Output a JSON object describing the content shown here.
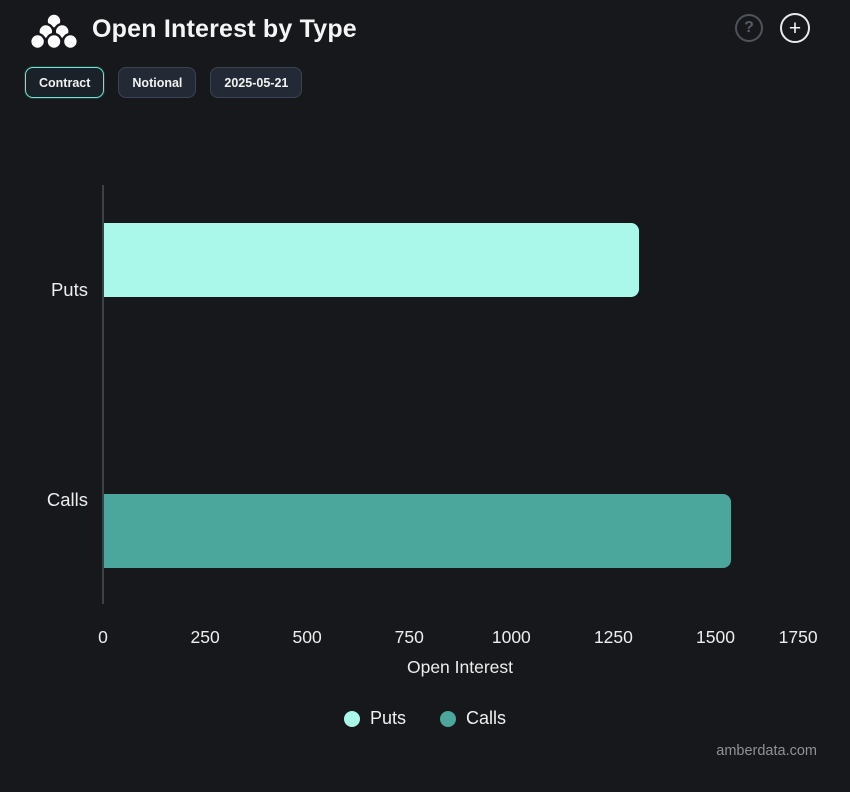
{
  "header": {
    "title": "Open Interest by Type",
    "icons": {
      "help": "?",
      "add": "+"
    }
  },
  "toolbar": {
    "buttons": [
      {
        "label": "Contract",
        "active": true
      },
      {
        "label": "Notional",
        "active": false
      },
      {
        "label": "2025-05-21",
        "active": false
      }
    ]
  },
  "chart_data": {
    "type": "bar",
    "orientation": "horizontal",
    "title": "Open Interest by Type",
    "categories": [
      "Puts",
      "Calls"
    ],
    "values": [
      1310,
      1535
    ],
    "colors": [
      "#a9f8e9",
      "#4ba79c"
    ],
    "xlabel": "Open Interest",
    "ylabel": "",
    "xticks": [
      0,
      250,
      500,
      750,
      1000,
      1250,
      1500,
      1750
    ],
    "xlim": [
      0,
      1750
    ],
    "grid": false,
    "legend_position": "bottom-center",
    "legend": [
      {
        "label": "Puts",
        "color": "#a9f8e9"
      },
      {
        "label": "Calls",
        "color": "#4ba79c"
      }
    ]
  },
  "footer": {
    "watermark": "amberdata.com"
  },
  "colors": {
    "background": "#16181c",
    "axis_line": "#3c4147",
    "active_button_border": "#6fe6d3",
    "puts_bar": "#a9f8e9",
    "calls_bar": "#4ba79c"
  }
}
